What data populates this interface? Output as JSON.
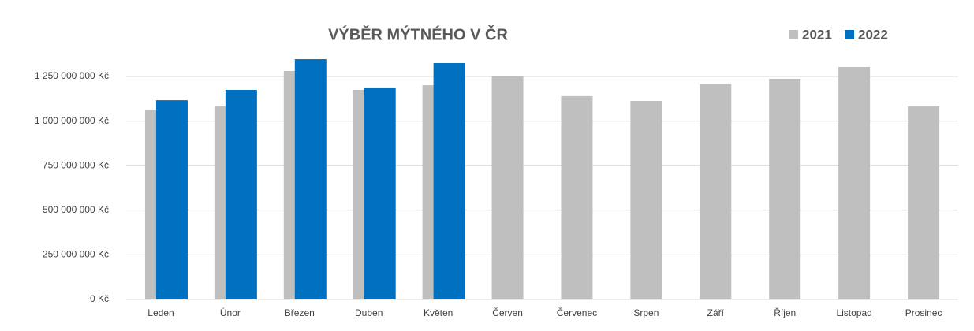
{
  "chart_data": {
    "type": "bar",
    "title": "VÝBĚR MÝTNÉHO V ČR",
    "categories": [
      "Leden",
      "Únor",
      "Březen",
      "Duben",
      "Květen",
      "Červen",
      "Červenec",
      "Srpen",
      "Září",
      "Říjen",
      "Listopad",
      "Prosinec"
    ],
    "series": [
      {
        "name": "2021",
        "color": "#bfbfbf",
        "values": [
          1065000000,
          1082000000,
          1281000000,
          1175000000,
          1201000000,
          1250000000,
          1140000000,
          1113000000,
          1210000000,
          1237000000,
          1303000000,
          1082000000
        ]
      },
      {
        "name": "2022",
        "color": "#0070c0",
        "values": [
          1117000000,
          1175000000,
          1347000000,
          1184000000,
          1325000000,
          null,
          null,
          null,
          null,
          null,
          null,
          null
        ]
      }
    ],
    "ylim": [
      0,
      1350000000
    ],
    "yticks": [
      {
        "value": 0,
        "label": "0 Kč"
      },
      {
        "value": 250000000,
        "label": "250 000 000 Kč"
      },
      {
        "value": 500000000,
        "label": "500 000 000 Kč"
      },
      {
        "value": 750000000,
        "label": "750 000 000 Kč"
      },
      {
        "value": 1000000000,
        "label": "1 000 000 000 Kč"
      },
      {
        "value": 1250000000,
        "label": "1 250 000 000 Kč"
      }
    ],
    "grid": true,
    "legend": "top-right"
  }
}
